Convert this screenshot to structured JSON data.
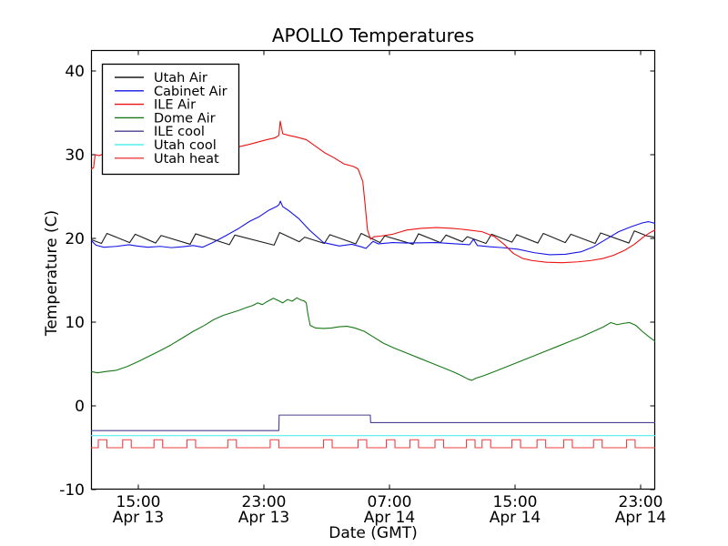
{
  "chart_data": {
    "type": "line",
    "title": "APOLLO Temperatures",
    "xlabel": "Date (GMT)",
    "ylabel": "Temperature (C)",
    "grid": false,
    "legend_position": "upper left",
    "x_unit_hours_since": "Apr 13 00:00 GMT",
    "xlim": [
      12.0,
      47.93
    ],
    "ylim": [
      -10,
      42.5
    ],
    "yticks": [
      40,
      30,
      20,
      10,
      0,
      -10
    ],
    "xticks": [
      {
        "t": 15,
        "time": "15:00",
        "date": "Apr 13"
      },
      {
        "t": 23,
        "time": "23:00",
        "date": "Apr 13"
      },
      {
        "t": 31,
        "time": "07:00",
        "date": "Apr 14"
      },
      {
        "t": 39,
        "time": "15:00",
        "date": "Apr 14"
      },
      {
        "t": 47,
        "time": "23:00",
        "date": "Apr 14"
      }
    ],
    "series": [
      {
        "name": "Utah Air",
        "color": "#1c1c1c",
        "points": [
          [
            12.0,
            19.85
          ],
          [
            12.65,
            19.4
          ],
          [
            13.0,
            20.6
          ],
          [
            14.45,
            19.5
          ],
          [
            14.8,
            20.5
          ],
          [
            16.1,
            19.45
          ],
          [
            16.45,
            20.35
          ],
          [
            18.3,
            19.3
          ],
          [
            18.65,
            20.55
          ],
          [
            20.8,
            19.25
          ],
          [
            21.15,
            20.4
          ],
          [
            23.65,
            19.2
          ],
          [
            24.0,
            20.7
          ],
          [
            25.25,
            19.6
          ],
          [
            25.6,
            20.15
          ],
          [
            26.85,
            19.4
          ],
          [
            27.2,
            20.45
          ],
          [
            28.85,
            19.35
          ],
          [
            29.2,
            20.6
          ],
          [
            30.4,
            19.5
          ],
          [
            30.7,
            20.3
          ],
          [
            32.5,
            19.3
          ],
          [
            32.85,
            20.55
          ],
          [
            34.25,
            19.5
          ],
          [
            34.6,
            20.4
          ],
          [
            35.65,
            19.6
          ],
          [
            35.95,
            20.2
          ],
          [
            37.15,
            19.4
          ],
          [
            37.5,
            20.5
          ],
          [
            38.8,
            19.55
          ],
          [
            39.1,
            20.45
          ],
          [
            40.45,
            19.45
          ],
          [
            40.8,
            20.6
          ],
          [
            42.2,
            19.5
          ],
          [
            42.55,
            20.5
          ],
          [
            44.1,
            19.4
          ],
          [
            44.45,
            20.65
          ],
          [
            46.25,
            19.45
          ],
          [
            46.6,
            20.9
          ],
          [
            47.4,
            20.3
          ],
          [
            47.93,
            20.15
          ]
        ]
      },
      {
        "name": "Cabinet Air",
        "color": "#1414e6",
        "points": [
          [
            12.0,
            19.75
          ],
          [
            12.3,
            19.2
          ],
          [
            12.8,
            18.95
          ],
          [
            13.6,
            19.05
          ],
          [
            14.4,
            19.25
          ],
          [
            14.9,
            19.1
          ],
          [
            15.6,
            18.95
          ],
          [
            16.4,
            19.05
          ],
          [
            17.1,
            18.9
          ],
          [
            17.8,
            19.0
          ],
          [
            18.5,
            19.15
          ],
          [
            19.1,
            18.95
          ],
          [
            19.8,
            19.55
          ],
          [
            20.6,
            20.35
          ],
          [
            21.4,
            21.2
          ],
          [
            22.1,
            22.05
          ],
          [
            22.7,
            22.6
          ],
          [
            23.3,
            23.35
          ],
          [
            23.8,
            23.8
          ],
          [
            23.97,
            24.05
          ],
          [
            24.05,
            24.45
          ],
          [
            24.2,
            23.8
          ],
          [
            24.6,
            23.3
          ],
          [
            25.2,
            22.4
          ],
          [
            25.9,
            21.0
          ],
          [
            26.8,
            19.5
          ],
          [
            27.8,
            19.1
          ],
          [
            28.6,
            19.3
          ],
          [
            29.2,
            19.0
          ],
          [
            29.5,
            18.8
          ],
          [
            29.95,
            19.65
          ],
          [
            30.3,
            19.35
          ],
          [
            31.2,
            19.5
          ],
          [
            32.1,
            19.45
          ],
          [
            34.0,
            19.5
          ],
          [
            35.2,
            19.35
          ],
          [
            36.1,
            19.25
          ],
          [
            36.35,
            19.9
          ],
          [
            36.6,
            19.15
          ],
          [
            37.4,
            19.0
          ],
          [
            38.2,
            18.9
          ],
          [
            39.2,
            18.7
          ],
          [
            40.2,
            18.3
          ],
          [
            41.2,
            18.05
          ],
          [
            42.2,
            18.1
          ],
          [
            43.2,
            18.4
          ],
          [
            44.0,
            19.0
          ],
          [
            44.8,
            19.9
          ],
          [
            45.6,
            20.8
          ],
          [
            46.4,
            21.4
          ],
          [
            47.1,
            21.85
          ],
          [
            47.5,
            22.0
          ],
          [
            47.93,
            21.8
          ]
        ]
      },
      {
        "name": "ILE Air",
        "color": "#ee1111",
        "points": [
          [
            12.0,
            28.3
          ],
          [
            12.15,
            28.45
          ],
          [
            12.25,
            30.0
          ],
          [
            12.5,
            29.9
          ],
          [
            12.75,
            30.05
          ],
          [
            14.0,
            30.15
          ],
          [
            16.0,
            30.3
          ],
          [
            18.0,
            30.5
          ],
          [
            20.0,
            30.7
          ],
          [
            21.3,
            30.9
          ],
          [
            22.0,
            31.2
          ],
          [
            22.6,
            31.5
          ],
          [
            23.2,
            31.8
          ],
          [
            23.7,
            32.0
          ],
          [
            23.95,
            32.3
          ],
          [
            24.04,
            34.0
          ],
          [
            24.2,
            32.5
          ],
          [
            24.6,
            32.3
          ],
          [
            25.1,
            32.1
          ],
          [
            25.7,
            31.8
          ],
          [
            26.3,
            31.0
          ],
          [
            26.9,
            30.2
          ],
          [
            27.5,
            29.6
          ],
          [
            28.1,
            28.9
          ],
          [
            28.7,
            28.6
          ],
          [
            29.0,
            28.3
          ],
          [
            29.3,
            26.8
          ],
          [
            29.45,
            24.0
          ],
          [
            29.6,
            21.0
          ],
          [
            29.8,
            19.9
          ],
          [
            30.0,
            20.2
          ],
          [
            30.5,
            20.3
          ],
          [
            31.2,
            20.5
          ],
          [
            32.1,
            21.0
          ],
          [
            33.0,
            21.2
          ],
          [
            34.0,
            21.3
          ],
          [
            35.0,
            21.2
          ],
          [
            35.6,
            21.1
          ],
          [
            36.9,
            20.8
          ],
          [
            37.7,
            20.2
          ],
          [
            38.3,
            19.3
          ],
          [
            38.9,
            18.2
          ],
          [
            39.5,
            17.6
          ],
          [
            40.1,
            17.35
          ],
          [
            41.0,
            17.15
          ],
          [
            42.0,
            17.1
          ],
          [
            43.0,
            17.2
          ],
          [
            43.8,
            17.35
          ],
          [
            44.6,
            17.6
          ],
          [
            45.3,
            18.0
          ],
          [
            46.0,
            18.6
          ],
          [
            46.6,
            19.3
          ],
          [
            47.2,
            20.2
          ],
          [
            47.6,
            20.7
          ],
          [
            47.93,
            21.0
          ]
        ]
      },
      {
        "name": "Dome Air",
        "color": "#167816",
        "points": [
          [
            12.0,
            4.1
          ],
          [
            12.4,
            3.95
          ],
          [
            12.9,
            4.1
          ],
          [
            13.6,
            4.25
          ],
          [
            14.3,
            4.7
          ],
          [
            15.0,
            5.3
          ],
          [
            15.7,
            5.95
          ],
          [
            16.4,
            6.6
          ],
          [
            17.1,
            7.3
          ],
          [
            17.8,
            8.1
          ],
          [
            18.5,
            8.9
          ],
          [
            19.2,
            9.6
          ],
          [
            19.8,
            10.3
          ],
          [
            20.4,
            10.8
          ],
          [
            20.9,
            11.1
          ],
          [
            21.4,
            11.4
          ],
          [
            21.9,
            11.75
          ],
          [
            22.3,
            12.0
          ],
          [
            22.6,
            12.3
          ],
          [
            22.9,
            12.1
          ],
          [
            23.2,
            12.45
          ],
          [
            23.6,
            12.85
          ],
          [
            23.9,
            12.6
          ],
          [
            24.2,
            12.3
          ],
          [
            24.5,
            12.7
          ],
          [
            24.8,
            12.5
          ],
          [
            25.1,
            12.9
          ],
          [
            25.35,
            12.65
          ],
          [
            25.55,
            12.55
          ],
          [
            25.7,
            12.3
          ],
          [
            25.8,
            11.0
          ],
          [
            25.95,
            9.6
          ],
          [
            26.3,
            9.3
          ],
          [
            26.8,
            9.25
          ],
          [
            27.3,
            9.3
          ],
          [
            27.8,
            9.45
          ],
          [
            28.3,
            9.5
          ],
          [
            28.8,
            9.3
          ],
          [
            29.4,
            8.9
          ],
          [
            30.0,
            8.2
          ],
          [
            30.6,
            7.5
          ],
          [
            31.3,
            6.9
          ],
          [
            32.1,
            6.3
          ],
          [
            32.9,
            5.7
          ],
          [
            33.7,
            5.1
          ],
          [
            34.5,
            4.5
          ],
          [
            35.2,
            3.95
          ],
          [
            35.7,
            3.5
          ],
          [
            36.0,
            3.2
          ],
          [
            36.25,
            3.05
          ],
          [
            36.5,
            3.3
          ],
          [
            37.0,
            3.6
          ],
          [
            37.7,
            4.1
          ],
          [
            38.5,
            4.7
          ],
          [
            39.3,
            5.3
          ],
          [
            40.1,
            5.9
          ],
          [
            40.9,
            6.5
          ],
          [
            41.7,
            7.1
          ],
          [
            42.5,
            7.7
          ],
          [
            43.3,
            8.3
          ],
          [
            44.0,
            8.9
          ],
          [
            44.6,
            9.4
          ],
          [
            45.1,
            9.95
          ],
          [
            45.5,
            9.7
          ],
          [
            45.9,
            9.85
          ],
          [
            46.3,
            9.95
          ],
          [
            46.7,
            9.6
          ],
          [
            47.1,
            8.9
          ],
          [
            47.5,
            8.3
          ],
          [
            47.93,
            7.7
          ]
        ]
      },
      {
        "name": "ILE cool",
        "color": "#4a3f92",
        "points": [
          [
            12.0,
            -2.95
          ],
          [
            23.95,
            -2.95
          ],
          [
            23.97,
            -1.1
          ],
          [
            29.78,
            -1.1
          ],
          [
            29.8,
            -2.0
          ],
          [
            47.93,
            -2.0
          ]
        ]
      },
      {
        "name": "Utah cool",
        "color": "#55eded",
        "points": [
          [
            12.0,
            -3.55
          ],
          [
            47.93,
            -3.55
          ]
        ]
      },
      {
        "name": "Utah heat",
        "color": "#ee3f3f",
        "square_wave": {
          "base": -5.0,
          "top": -4.05,
          "pulse_width": 0.55,
          "pulse_starts": [
            12.45,
            14.0,
            16.0,
            18.1,
            20.7,
            23.4,
            26.8,
            29.0,
            30.8,
            32.3,
            33.9,
            35.9,
            36.9,
            38.8,
            40.4,
            42.1,
            44.0,
            46.1
          ]
        }
      }
    ]
  }
}
